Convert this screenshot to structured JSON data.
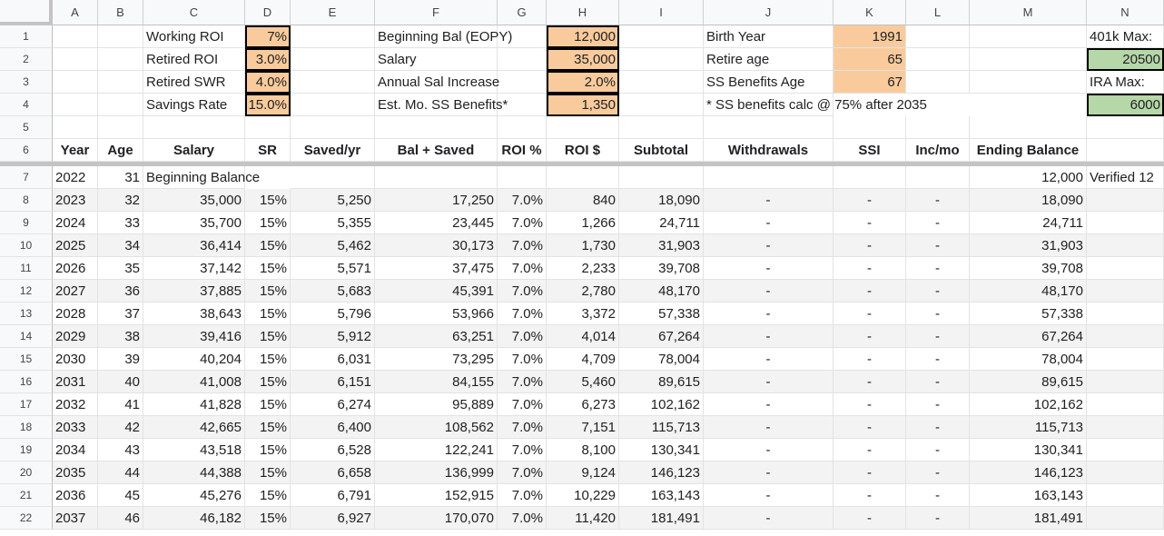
{
  "columns": [
    "A",
    "B",
    "C",
    "D",
    "E",
    "F",
    "G",
    "H",
    "I",
    "J",
    "K",
    "L",
    "M",
    "N"
  ],
  "inputs": {
    "r1": {
      "c_label": "Working ROI",
      "d_val": "7%",
      "f_label": "Beginning Bal (EOPY)",
      "h_val": "12,000",
      "j_label": "Birth Year",
      "k_val": "1991",
      "n_label": "401k Max:"
    },
    "r2": {
      "c_label": "Retired ROI",
      "d_val": "3.0%",
      "f_label": "Salary",
      "h_val": "35,000",
      "j_label": "Retire age",
      "k_val": "65",
      "n_val": "20500"
    },
    "r3": {
      "c_label": "Retired SWR",
      "d_val": "4.0%",
      "f_label": "Annual Sal Increase",
      "h_val": "2.0%",
      "j_label": "SS Benefits Age",
      "k_val": "67",
      "n_label": "IRA Max:"
    },
    "r4": {
      "c_label": "Savings Rate",
      "d_val": "15.0%",
      "f_label": "Est. Mo. SS Benefits*",
      "h_val": "1,350",
      "j_label": "* SS benefits calc @ 75% after 2035",
      "n_val": "6000"
    }
  },
  "headers": [
    "Year",
    "Age",
    "Salary",
    "SR",
    "Saved/yr",
    "Bal + Saved",
    "ROI %",
    "ROI $",
    "Subtotal",
    "Withdrawals",
    "SSI",
    "Inc/mo",
    "Ending Balance"
  ],
  "first_row": {
    "year": "2022",
    "age": "31",
    "label": "Beginning Balance",
    "ending": "12,000",
    "note": "Verified 12"
  },
  "rows": [
    [
      "2023",
      "32",
      "35,000",
      "15%",
      "5,250",
      "17,250",
      "7.0%",
      "840",
      "18,090",
      "-",
      "-",
      "-",
      "18,090"
    ],
    [
      "2024",
      "33",
      "35,700",
      "15%",
      "5,355",
      "23,445",
      "7.0%",
      "1,266",
      "24,711",
      "-",
      "-",
      "-",
      "24,711"
    ],
    [
      "2025",
      "34",
      "36,414",
      "15%",
      "5,462",
      "30,173",
      "7.0%",
      "1,730",
      "31,903",
      "-",
      "-",
      "-",
      "31,903"
    ],
    [
      "2026",
      "35",
      "37,142",
      "15%",
      "5,571",
      "37,475",
      "7.0%",
      "2,233",
      "39,708",
      "-",
      "-",
      "-",
      "39,708"
    ],
    [
      "2027",
      "36",
      "37,885",
      "15%",
      "5,683",
      "45,391",
      "7.0%",
      "2,780",
      "48,170",
      "-",
      "-",
      "-",
      "48,170"
    ],
    [
      "2028",
      "37",
      "38,643",
      "15%",
      "5,796",
      "53,966",
      "7.0%",
      "3,372",
      "57,338",
      "-",
      "-",
      "-",
      "57,338"
    ],
    [
      "2029",
      "38",
      "39,416",
      "15%",
      "5,912",
      "63,251",
      "7.0%",
      "4,014",
      "67,264",
      "-",
      "-",
      "-",
      "67,264"
    ],
    [
      "2030",
      "39",
      "40,204",
      "15%",
      "6,031",
      "73,295",
      "7.0%",
      "4,709",
      "78,004",
      "-",
      "-",
      "-",
      "78,004"
    ],
    [
      "2031",
      "40",
      "41,008",
      "15%",
      "6,151",
      "84,155",
      "7.0%",
      "5,460",
      "89,615",
      "-",
      "-",
      "-",
      "89,615"
    ],
    [
      "2032",
      "41",
      "41,828",
      "15%",
      "6,274",
      "95,889",
      "7.0%",
      "6,273",
      "102,162",
      "-",
      "-",
      "-",
      "102,162"
    ],
    [
      "2033",
      "42",
      "42,665",
      "15%",
      "6,400",
      "108,562",
      "7.0%",
      "7,151",
      "115,713",
      "-",
      "-",
      "-",
      "115,713"
    ],
    [
      "2034",
      "43",
      "43,518",
      "15%",
      "6,528",
      "122,241",
      "7.0%",
      "8,100",
      "130,341",
      "-",
      "-",
      "-",
      "130,341"
    ],
    [
      "2035",
      "44",
      "44,388",
      "15%",
      "6,658",
      "136,999",
      "7.0%",
      "9,124",
      "146,123",
      "-",
      "-",
      "-",
      "146,123"
    ],
    [
      "2036",
      "45",
      "45,276",
      "15%",
      "6,791",
      "152,915",
      "7.0%",
      "10,229",
      "163,143",
      "-",
      "-",
      "-",
      "163,143"
    ],
    [
      "2037",
      "46",
      "46,182",
      "15%",
      "6,927",
      "170,070",
      "7.0%",
      "11,420",
      "181,491",
      "-",
      "-",
      "-",
      "181,491"
    ]
  ],
  "row_numbers": [
    "1",
    "2",
    "3",
    "4",
    "5",
    "6",
    "7",
    "8",
    "9",
    "10",
    "11",
    "12",
    "13",
    "14",
    "15",
    "16",
    "17",
    "18",
    "19",
    "20",
    "21",
    "22"
  ],
  "colors": {
    "input_fill": "#f9cb9c",
    "limit_fill": "#b6d7a8",
    "alt_row": "#f3f3f3"
  }
}
